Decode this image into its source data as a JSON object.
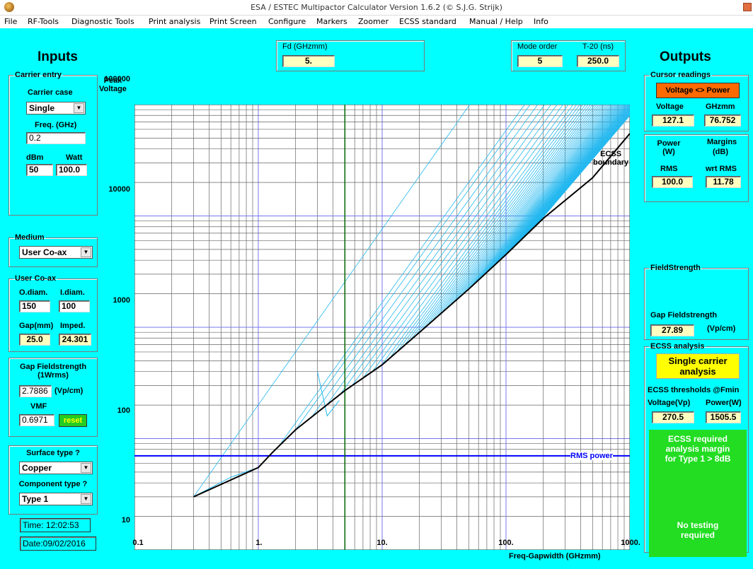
{
  "window": {
    "title": "ESA / ESTEC Multipactor Calculator Version 1.6.2  (© S.J.G. Strijk)"
  },
  "menu": [
    "File",
    "RF-Tools",
    "Diagnostic Tools",
    "Print analysis",
    "Print Screen",
    "Configure",
    "Markers",
    "Zoomer",
    "ECSS standard",
    "Manual / Help",
    "Info"
  ],
  "inputs": {
    "title": "Inputs",
    "carrier_entry": {
      "legend": "Carrier entry",
      "case_label": "Carrier case",
      "case_value": "Single",
      "freq_label": "Freq. (GHz)",
      "freq_value": "0.2",
      "dbm_label": "dBm",
      "watt_label": "Watt",
      "dbm_value": "50",
      "watt_value": "100.0"
    },
    "medium": {
      "legend": "Medium",
      "value": "User Co-ax"
    },
    "user_coax": {
      "legend": "User Co-ax",
      "odiam_label": "O.diam.",
      "idiam_label": "I.diam.",
      "odiam_value": "150",
      "idiam_value": "100",
      "gap_label": "Gap(mm)",
      "imped_label": "Imped.",
      "gap_value": "25.0",
      "imped_value": "24.301"
    },
    "gap_field": {
      "title_line1": "Gap Fieldstrength",
      "title_line2": "(1Wrms)",
      "value": "2.7886",
      "unit": "(Vp/cm)",
      "vmf_label": "VMF",
      "vmf_value": "0.6971",
      "reset_label": "reset"
    },
    "surface": {
      "surface_label": "Surface type ?",
      "surface_value": "Copper",
      "component_label": "Component type ?",
      "component_value": "Type 1"
    },
    "time": "Time: 12:02:53",
    "date": "Date:09/02/2016"
  },
  "top": {
    "fd_label": "Fd (GHzmm)",
    "fd_value": "5.",
    "mode_label": "Mode order",
    "mode_value": "5",
    "t20_label": "T-20 (ns)",
    "t20_value": "250.0"
  },
  "plot": {
    "ylabel_line1": "Peak",
    "ylabel_line2": "Voltage",
    "xlabel": "Freq-Gapwidth (GHzmm)",
    "yticks": [
      "100000",
      "10000",
      "1000",
      "100",
      "10"
    ],
    "xticks": [
      "0.1",
      "1.",
      "10.",
      "100.",
      "1000."
    ],
    "ecss_label_line1": "ECSS",
    "ecss_label_line2": "boundary",
    "rms_label": "RMS power"
  },
  "outputs": {
    "title": "Outputs",
    "cursor": {
      "legend": "Cursor readings",
      "button": "Voltage <> Power",
      "voltage_label": "Voltage",
      "ghzmm_label": "GHzmm",
      "voltage_value": "127.1",
      "ghzmm_value": "76.752"
    },
    "power": {
      "power_label_line1": "Power",
      "power_label_line2": "(W)",
      "margins_legend": "Margins",
      "margins_unit": "(dB)",
      "rms_label": "RMS",
      "wrt_label": "wrt RMS",
      "rms_value": "100.0",
      "wrt_value": "11.78"
    },
    "fieldstrength": {
      "legend": "FieldStrength",
      "gap_label": "Gap Fieldstrength",
      "value": "27.89",
      "unit": "(Vp/cm)"
    },
    "ecss": {
      "legend": "ECSS analysis",
      "panel_line1": "Single carrier",
      "panel_line2": "analysis",
      "thresholds_label": "ECSS thresholds @Fmin",
      "voltage_label": "Voltage(Vp)",
      "power_label": "Power(W)",
      "voltage_value": "270.5",
      "power_value": "1505.5",
      "margin_line1": "ECSS required",
      "margin_line2": "analysis margin",
      "margin_line3": "for Type 1 > 8dB",
      "test_line1": "No testing",
      "test_line2": "required"
    }
  },
  "chart_data": {
    "type": "line",
    "x_scale": "log",
    "y_scale": "log",
    "xlim": [
      0.1,
      1000
    ],
    "ylim": [
      10,
      100000
    ],
    "xlabel": "Freq-Gapwidth (GHzmm)",
    "ylabel": "Peak Voltage",
    "colors": {
      "ecss": "#000000",
      "susceptibility": "#22b8f0",
      "rms": "#0000ff",
      "fd": "#006600"
    },
    "ecss_boundary": {
      "x": [
        0.3,
        1.0,
        1.3,
        2.0,
        5.0,
        10,
        20,
        50,
        100,
        200,
        500,
        1000
      ],
      "y": [
        30,
        55,
        75,
        120,
        270,
        460,
        900,
        2200,
        4500,
        9500,
        22000,
        55000
      ]
    },
    "rms_power_level": 70,
    "fd_marker": 5
  }
}
